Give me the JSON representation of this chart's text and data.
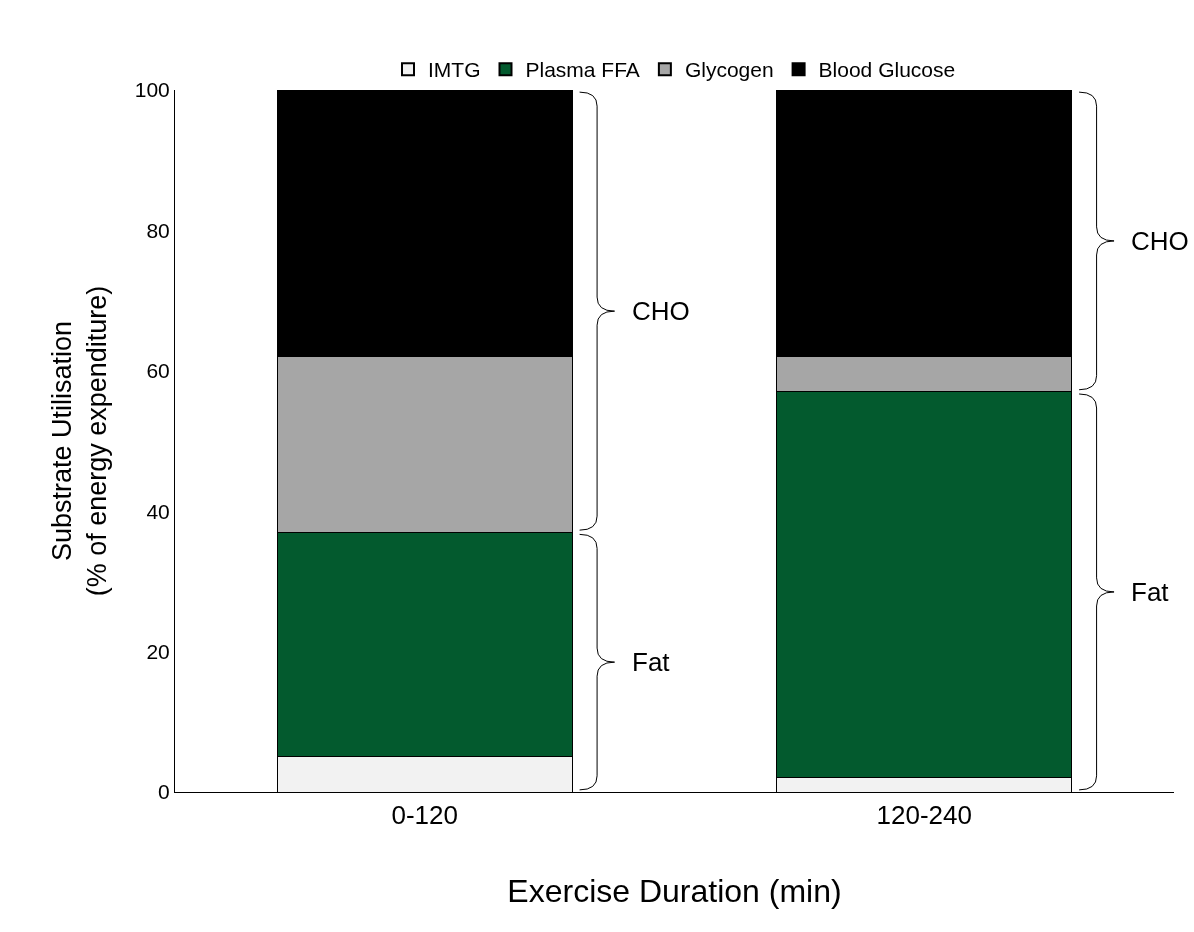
{
  "chart_data": {
    "type": "bar",
    "stacked": true,
    "xlabel": "Exercise Duration (min)",
    "ylabel": "Substrate Utilisation\n(% of energy expenditure)",
    "categories": [
      "0-120",
      "120-240"
    ],
    "series": [
      {
        "name": "IMTG",
        "color": "#f2f2f2",
        "values": [
          5,
          2
        ]
      },
      {
        "name": "Plasma FFA",
        "color": "#035a2e",
        "values": [
          32,
          55
        ]
      },
      {
        "name": "Glycogen",
        "color": "#a6a6a6",
        "values": [
          25,
          5
        ]
      },
      {
        "name": "Blood Glucose",
        "color": "#000000",
        "values": [
          38,
          38
        ]
      }
    ],
    "annotations": [
      "CHO",
      "Fat",
      "CHO",
      "Fat"
    ],
    "ylim": [
      0,
      100
    ],
    "yticks": [
      0,
      20,
      40,
      60,
      80,
      100
    ],
    "legend": "top"
  }
}
